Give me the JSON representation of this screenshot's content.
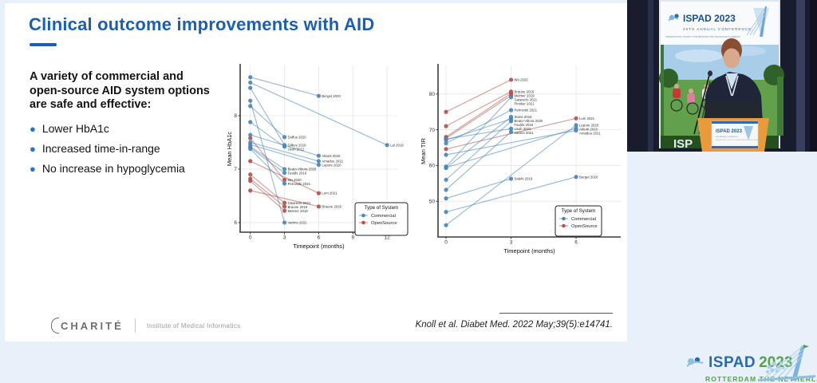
{
  "page": {
    "background": "#e8f1fa",
    "accent_blue": "#1b5fad"
  },
  "slide": {
    "title": "Clinical outcome improvements with AID",
    "intro_lines": [
      "A variety of commercial and",
      "open-source AID system options",
      "are safe and effective:"
    ],
    "bullets": [
      "Lower HbA1c",
      "Increased time-in-range",
      "No increase in hypoglycemia"
    ],
    "footer": {
      "logo_text": "CHARITÉ",
      "institute": "Institute of Medical Informatics",
      "citation": "Knoll et al. Diabet Med. 2022 May;39(5):e14741."
    }
  },
  "chart_data": [
    {
      "type": "line",
      "title": "",
      "xlabel": "Timepoint (months)",
      "ylabel": "Mean HbA1c",
      "xticks": [
        0,
        3,
        6,
        9,
        12
      ],
      "yticks": [
        6,
        7,
        8
      ],
      "xlim": [
        -0.89,
        12.9
      ],
      "ylim": [
        5.82,
        8.94
      ],
      "grid": true,
      "legend": {
        "title": "Type of System",
        "position": "bottom-right",
        "entries": [
          {
            "label": "Commercial",
            "color": "#4c86b8"
          },
          {
            "label": "OpenSource",
            "color": "#b2534f"
          }
        ]
      },
      "series": [
        {
          "study": "Berget 2020",
          "system": "Commercial",
          "points": [
            [
              0,
              8.72
            ],
            [
              6,
              8.37
            ]
          ]
        },
        {
          "study": "Lal 2019",
          "system": "Commercial",
          "points": [
            [
              0,
              8.62
            ],
            [
              12,
              7.45
            ]
          ]
        },
        {
          "study": "Gilbey 2019",
          "system": "Commercial",
          "points": [
            [
              0,
              8.52
            ],
            [
              3,
              7.45
            ]
          ]
        },
        {
          "study": "Varimo 2021",
          "system": "Commercial",
          "points": [
            [
              0,
              8.28
            ],
            [
              3,
              6.0
            ]
          ]
        },
        {
          "study": "Duffus 2020",
          "system": "Commercial",
          "points": [
            [
              0,
              8.18
            ],
            [
              3,
              7.6
            ]
          ]
        },
        {
          "study": "Usoh 2021",
          "system": "Commercial",
          "points": [
            [
              0,
              7.88
            ],
            [
              3,
              7.42
            ]
          ]
        },
        {
          "study": "Akturk 2020",
          "system": "Commercial",
          "points": [
            [
              0,
              7.64
            ],
            [
              6,
              7.25
            ]
          ]
        },
        {
          "study": "Amadou 2021",
          "system": "Commercial",
          "points": [
            [
              0,
              7.5
            ],
            [
              6,
              7.15
            ]
          ]
        },
        {
          "study": "Lepore 2020",
          "system": "Commercial",
          "points": [
            [
              0,
              7.46
            ],
            [
              6,
              7.08
            ]
          ]
        },
        {
          "study": "Beato-Vibora 2020",
          "system": "Commercial",
          "points": [
            [
              0,
              7.42
            ],
            [
              3,
              7.0
            ]
          ]
        },
        {
          "study": "Faulds 2019",
          "system": "Commercial",
          "points": [
            [
              0,
              7.4
            ],
            [
              3,
              6.93
            ]
          ]
        },
        {
          "study": "Petrovski 2021",
          "system": "Commercial",
          "points": [
            [
              0,
              7.38
            ],
            [
              3,
              6.73
            ]
          ]
        },
        {
          "study": "Wu 2020",
          "system": "OpenSource",
          "points": [
            [
              0,
              7.58
            ],
            [
              3,
              6.8
            ]
          ]
        },
        {
          "study": "Lum 2021",
          "system": "OpenSource",
          "points": [
            [
              0,
              7.15
            ],
            [
              6,
              6.55
            ]
          ]
        },
        {
          "study": "Gawrecki 2021",
          "system": "OpenSource",
          "points": [
            [
              0,
              6.9
            ],
            [
              3,
              6.37
            ]
          ]
        },
        {
          "study": "Braune 2019",
          "system": "OpenSource",
          "points": [
            [
              0,
              6.82
            ],
            [
              3,
              6.3
            ]
          ]
        },
        {
          "study": "Melmer 2019",
          "system": "OpenSource",
          "points": [
            [
              0,
              6.78
            ],
            [
              3,
              6.22
            ]
          ]
        },
        {
          "study": "Braune 2020",
          "system": "OpenSource",
          "points": [
            [
              0,
              6.6
            ],
            [
              6,
              6.3
            ]
          ]
        }
      ]
    },
    {
      "type": "line",
      "title": "",
      "xlabel": "Timepoint (months)",
      "ylabel": "Mean TIR",
      "xticks": [
        0,
        3,
        6
      ],
      "yticks": [
        50,
        60,
        70,
        80
      ],
      "xlim": [
        -0.37,
        8.06
      ],
      "ylim": [
        40,
        88
      ],
      "grid": true,
      "legend": {
        "title": "Type of System",
        "position": "bottom-right",
        "entries": [
          {
            "label": "Commercial",
            "color": "#4c86b8"
          },
          {
            "label": "OpenSource",
            "color": "#b2534f"
          }
        ]
      },
      "series": [
        {
          "study": "Wu 2020",
          "system": "OpenSource",
          "points": [
            [
              0,
              75
            ],
            [
              3,
              84
            ]
          ]
        },
        {
          "study": "Braune 2019",
          "system": "OpenSource",
          "points": [
            [
              0,
              71
            ],
            [
              3,
              80.7
            ]
          ]
        },
        {
          "study": "Melmer 2019",
          "system": "OpenSource",
          "points": [
            [
              0,
              68
            ],
            [
              3,
              80.2
            ]
          ]
        },
        {
          "study": "Gawrecki 2021",
          "system": "OpenSource",
          "points": [
            [
              0,
              67.6
            ],
            [
              3,
              79.6
            ]
          ]
        },
        {
          "study": "Lum 2021",
          "system": "OpenSource",
          "points": [
            [
              0,
              64.6
            ],
            [
              6,
              73.2
            ]
          ]
        },
        {
          "study": "Pinsker 2021",
          "system": "Commercial",
          "points": [
            [
              0,
              59.7
            ],
            [
              3,
              79.1
            ]
          ]
        },
        {
          "study": "Petrovski 2021",
          "system": "Commercial",
          "points": [
            [
              0,
              66.2
            ],
            [
              3,
              75.5
            ]
          ]
        },
        {
          "study": "Stone 2018",
          "system": "Commercial",
          "points": [
            [
              0,
              59.3
            ],
            [
              3,
              73.6
            ]
          ]
        },
        {
          "study": "Beato-Vibora 2020",
          "system": "Commercial",
          "points": [
            [
              0,
              67.1
            ],
            [
              3,
              73.0
            ]
          ]
        },
        {
          "study": "Faulds 2019",
          "system": "Commercial",
          "points": [
            [
              0,
              56.0
            ],
            [
              3,
              72.4
            ]
          ]
        },
        {
          "study": "Usoh 2021",
          "system": "Commercial",
          "points": [
            [
              0,
              67.4
            ],
            [
              3,
              70.3
            ]
          ]
        },
        {
          "study": "Varimo 2021",
          "system": "Commercial",
          "points": [
            [
              0,
              53.2
            ],
            [
              3,
              69.4
            ]
          ]
        },
        {
          "study": "Lepore 2020",
          "system": "Commercial",
          "points": [
            [
              0,
              43.3
            ],
            [
              6,
              71.3
            ]
          ]
        },
        {
          "study": "Akturk 2020",
          "system": "Commercial",
          "points": [
            [
              0,
              59.4
            ],
            [
              6,
              70.4
            ]
          ]
        },
        {
          "study": "Amadou 2021",
          "system": "Commercial",
          "points": [
            [
              0,
              63.0
            ],
            [
              6,
              69.8
            ]
          ]
        },
        {
          "study": "Salehi 2019",
          "system": "Commercial",
          "points": [
            [
              0,
              50.8
            ],
            [
              3,
              56.3
            ]
          ]
        },
        {
          "study": "Berget 2020",
          "system": "Commercial",
          "points": [
            [
              0,
              47.0
            ],
            [
              6,
              56.8
            ]
          ]
        }
      ]
    }
  ],
  "webcam": {
    "banner": {
      "title": "ISPAD 2023",
      "line2": "49TH ANNUAL CONFERENCE",
      "line3": "INTERNATIONAL SOCIETY FOR PEDIATRIC AND ADOLESCENT DIABETES",
      "partial_bottom_text": "ISP"
    },
    "podium": {
      "title": "ISPAD 2023",
      "line2": "49TH ANNUAL CONFERENCE",
      "line3": "INTERNATIONAL SOCIETY FOR PEDIATRIC AND ADOLESCENT DIABETES"
    }
  },
  "bottom_logo": {
    "name": "ISPAD",
    "year": "2023",
    "subtitle": "ROTTERDAM THE NETHERLANDS",
    "name_color": "#2a6ca8",
    "year_color": "#57a14e"
  }
}
